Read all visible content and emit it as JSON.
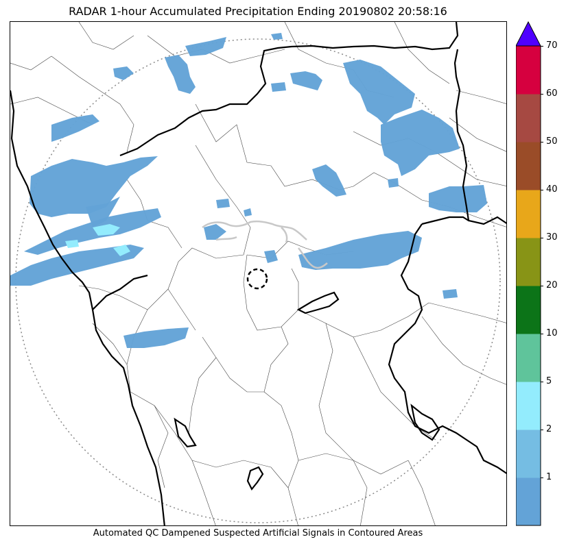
{
  "header": {
    "title": "RADAR 1-hour Accumulated Precipitation Ending 20190802 20:58:16"
  },
  "footer": {
    "note": "Automated QC Dampened Suspected Artificial Signals in Contoured Areas"
  },
  "colorbar": {
    "extend": "max",
    "extend_color": "#4f00ff",
    "ticks": [
      "1",
      "2",
      "5",
      "10",
      "20",
      "30",
      "40",
      "50",
      "60",
      "70"
    ],
    "bins": [
      {
        "color": "#63a3d7"
      },
      {
        "color": "#75bde3"
      },
      {
        "color": "#93ecfd"
      },
      {
        "color": "#5fc49b"
      },
      {
        "color": "#0c7418"
      },
      {
        "color": "#889416"
      },
      {
        "color": "#e8a71a"
      },
      {
        "color": "#9a4c28"
      },
      {
        "color": "#a64942"
      },
      {
        "color": "#d6003f"
      }
    ]
  },
  "map": {
    "range_ring": "dotted",
    "radar_site_marker": "dashed-circle",
    "precip_color_main": "#63a3d7",
    "precip_color_light": "#93ecfd",
    "qc_contour_color": "#c8c8c8"
  }
}
